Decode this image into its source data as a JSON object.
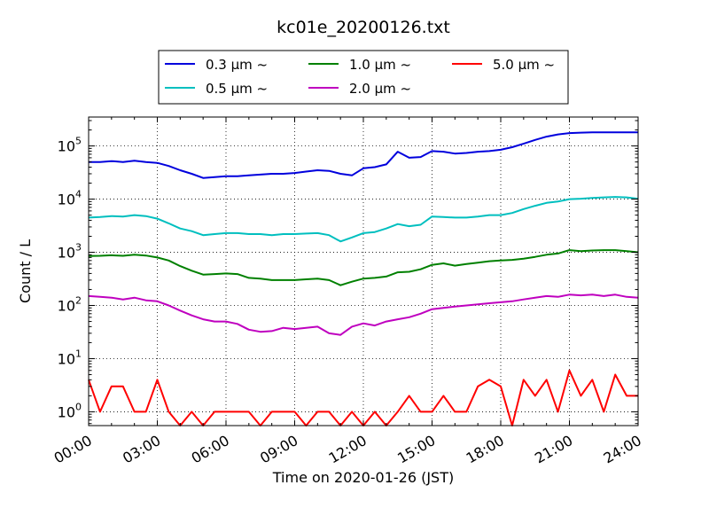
{
  "chart_data": {
    "type": "line",
    "title": "kc01e_20200126.txt",
    "xlabel": "Time on 2020-01-26 (JST)",
    "ylabel": "Count / L",
    "yscale": "log",
    "xlim": [
      "00:00",
      "24:00"
    ],
    "ylim": [
      0.55,
      350000
    ],
    "grid": true,
    "legend_position": "top",
    "x_ticks": [
      "00:00",
      "03:00",
      "06:00",
      "09:00",
      "12:00",
      "15:00",
      "18:00",
      "21:00",
      "24:00"
    ],
    "y_ticks": [
      {
        "value": 1,
        "base": "10",
        "exp": "0"
      },
      {
        "value": 10,
        "base": "10",
        "exp": "1"
      },
      {
        "value": 100,
        "base": "10",
        "exp": "2"
      },
      {
        "value": 1000,
        "base": "10",
        "exp": "3"
      },
      {
        "value": 10000,
        "base": "10",
        "exp": "4"
      },
      {
        "value": 100000,
        "base": "10",
        "exp": "5"
      }
    ],
    "x_hours": [
      0,
      0.5,
      1,
      1.5,
      2,
      2.5,
      3,
      3.5,
      4,
      4.5,
      5,
      5.5,
      6,
      6.5,
      7,
      7.5,
      8,
      8.5,
      9,
      9.5,
      10,
      10.5,
      11,
      11.5,
      12,
      12.5,
      13,
      13.5,
      14,
      14.5,
      15,
      15.5,
      16,
      16.5,
      17,
      17.5,
      18,
      18.5,
      19,
      19.5,
      20,
      20.5,
      21,
      21.5,
      22,
      22.5,
      23,
      23.5,
      24
    ],
    "series": [
      {
        "name": "0.3 μm ~",
        "color": "#0000dd",
        "values": [
          50000,
          50000,
          52000,
          50000,
          53000,
          50000,
          48000,
          42000,
          35000,
          30000,
          25000,
          26000,
          27000,
          27000,
          28000,
          29000,
          30000,
          30000,
          31000,
          33000,
          35000,
          34000,
          30000,
          28000,
          38000,
          40000,
          45000,
          78000,
          60000,
          62000,
          80000,
          78000,
          72000,
          74000,
          78000,
          80000,
          85000,
          95000,
          110000,
          130000,
          150000,
          165000,
          175000,
          178000,
          180000,
          180000,
          180000,
          180000,
          180000
        ]
      },
      {
        "name": "0.5 μm ~",
        "color": "#00bfbf",
        "values": [
          4500,
          4600,
          4800,
          4700,
          5000,
          4800,
          4300,
          3500,
          2800,
          2500,
          2100,
          2200,
          2300,
          2300,
          2200,
          2200,
          2100,
          2200,
          2200,
          2250,
          2300,
          2100,
          1600,
          1900,
          2300,
          2400,
          2800,
          3400,
          3100,
          3300,
          4700,
          4600,
          4500,
          4500,
          4700,
          5000,
          5000,
          5500,
          6500,
          7500,
          8500,
          9000,
          10000,
          10200,
          10500,
          10800,
          11000,
          10800,
          10200
        ]
      },
      {
        "name": "1.0 μm ~",
        "color": "#008000",
        "values": [
          850,
          860,
          880,
          860,
          900,
          870,
          800,
          700,
          550,
          450,
          380,
          390,
          400,
          390,
          330,
          320,
          300,
          300,
          300,
          310,
          320,
          300,
          240,
          280,
          320,
          330,
          350,
          420,
          430,
          480,
          580,
          620,
          560,
          600,
          640,
          680,
          700,
          720,
          760,
          820,
          900,
          950,
          1100,
          1050,
          1080,
          1100,
          1100,
          1050,
          1000
        ]
      },
      {
        "name": "2.0 μm ~",
        "color": "#bf00bf",
        "values": [
          150,
          145,
          140,
          130,
          140,
          125,
          120,
          100,
          80,
          65,
          55,
          50,
          50,
          45,
          35,
          32,
          33,
          38,
          36,
          38,
          40,
          30,
          28,
          40,
          46,
          42,
          50,
          55,
          60,
          70,
          85,
          90,
          95,
          100,
          105,
          110,
          115,
          120,
          130,
          140,
          150,
          145,
          160,
          155,
          160,
          150,
          160,
          145,
          140
        ]
      },
      {
        "name": "5.0 μm ~",
        "color": "#ff0000",
        "values": [
          4,
          1,
          3,
          3,
          1,
          1,
          4,
          1,
          0.5,
          1,
          0.5,
          1,
          1,
          1,
          1,
          0.5,
          1,
          1,
          1,
          0.5,
          1,
          1,
          0.5,
          1,
          0.5,
          1,
          0.5,
          1,
          2,
          1,
          1,
          2,
          1,
          1,
          3,
          4,
          3,
          0.5,
          4,
          2,
          4,
          1,
          6,
          2,
          4,
          1,
          5,
          2,
          2
        ]
      }
    ]
  }
}
